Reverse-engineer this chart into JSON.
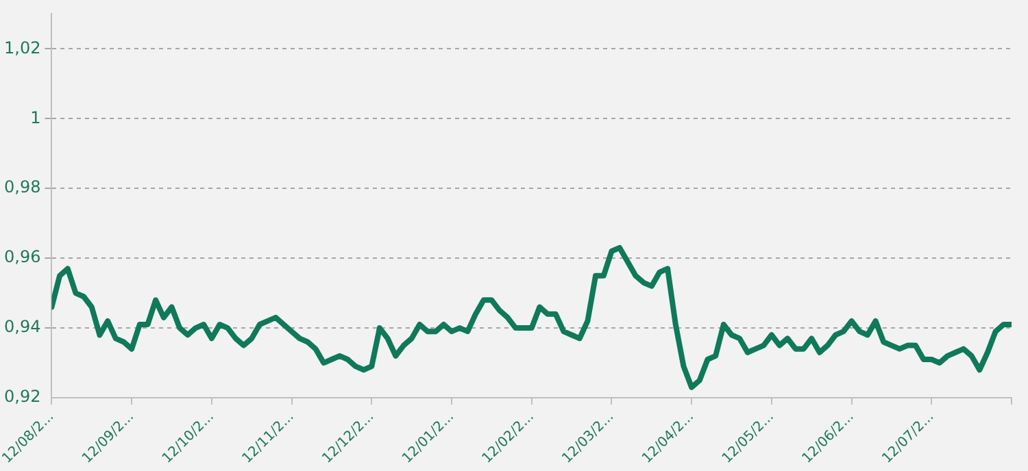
{
  "chart_data": {
    "type": "line",
    "categories": [
      "12/08/2...",
      null,
      null,
      null,
      null,
      null,
      null,
      null,
      null,
      null,
      "12/09/2...",
      null,
      null,
      null,
      null,
      null,
      null,
      null,
      null,
      null,
      "12/10/2...",
      null,
      null,
      null,
      null,
      null,
      null,
      null,
      null,
      null,
      "12/11/2...",
      null,
      null,
      null,
      null,
      null,
      null,
      null,
      null,
      null,
      "12/12/2...",
      null,
      null,
      null,
      null,
      null,
      null,
      null,
      null,
      null,
      "12/01/2...",
      null,
      null,
      null,
      null,
      null,
      null,
      null,
      null,
      null,
      "12/02/2...",
      null,
      null,
      null,
      null,
      null,
      null,
      null,
      null,
      null,
      "12/03/2...",
      null,
      null,
      null,
      null,
      null,
      null,
      null,
      null,
      null,
      "12/04/2...",
      null,
      null,
      null,
      null,
      null,
      null,
      null,
      null,
      null,
      "12/05/2...",
      null,
      null,
      null,
      null,
      null,
      null,
      null,
      null,
      null,
      "12/06/2...",
      null,
      null,
      null,
      null,
      null,
      null,
      null,
      null,
      null,
      "12/07/2...",
      null,
      null,
      null,
      null,
      null,
      null,
      null,
      null,
      null,
      null
    ],
    "series": [
      {
        "color": "#0e7a5a",
        "values": [
          0.946,
          0.955,
          0.957,
          0.95,
          0.949,
          0.946,
          0.938,
          0.942,
          0.937,
          0.936,
          0.934,
          0.941,
          0.941,
          0.948,
          0.943,
          0.946,
          0.94,
          0.938,
          0.94,
          0.941,
          0.937,
          0.941,
          0.94,
          0.937,
          0.935,
          0.937,
          0.941,
          0.942,
          0.943,
          0.941,
          0.939,
          0.937,
          0.936,
          0.934,
          0.93,
          0.931,
          0.932,
          0.931,
          0.929,
          0.928,
          0.929,
          0.94,
          0.937,
          0.932,
          0.935,
          0.937,
          0.941,
          0.939,
          0.939,
          0.941,
          0.939,
          0.94,
          0.939,
          0.944,
          0.948,
          0.948,
          0.945,
          0.943,
          0.94,
          0.94,
          0.94,
          0.946,
          0.944,
          0.944,
          0.939,
          0.938,
          0.937,
          0.942,
          0.955,
          0.955,
          0.962,
          0.963,
          0.959,
          0.955,
          0.953,
          0.952,
          0.956,
          0.957,
          0.941,
          0.929,
          0.923,
          0.925,
          0.931,
          0.932,
          0.941,
          0.938,
          0.937,
          0.933,
          0.934,
          0.935,
          0.938,
          0.935,
          0.937,
          0.934,
          0.934,
          0.937,
          0.933,
          0.935,
          0.938,
          0.939,
          0.942,
          0.939,
          0.938,
          0.942,
          0.936,
          0.935,
          0.934,
          0.935,
          0.935,
          0.931,
          0.931,
          0.93,
          0.932,
          0.933,
          0.934,
          0.932,
          0.928,
          0.933,
          0.939,
          0.941,
          0.941
        ]
      }
    ],
    "ylim": [
      0.92,
      1.03
    ],
    "yticks": [
      {
        "value": 0.92,
        "label": "0,92"
      },
      {
        "value": 0.94,
        "label": "0,94"
      },
      {
        "value": 0.96,
        "label": "0,96"
      },
      {
        "value": 0.98,
        "label": "0,98"
      },
      {
        "value": 1,
        "label": "1"
      },
      {
        "value": 1.02,
        "label": "1,02"
      }
    ],
    "grid": "y",
    "legend": false,
    "marker": "none",
    "line_style": "solid"
  }
}
